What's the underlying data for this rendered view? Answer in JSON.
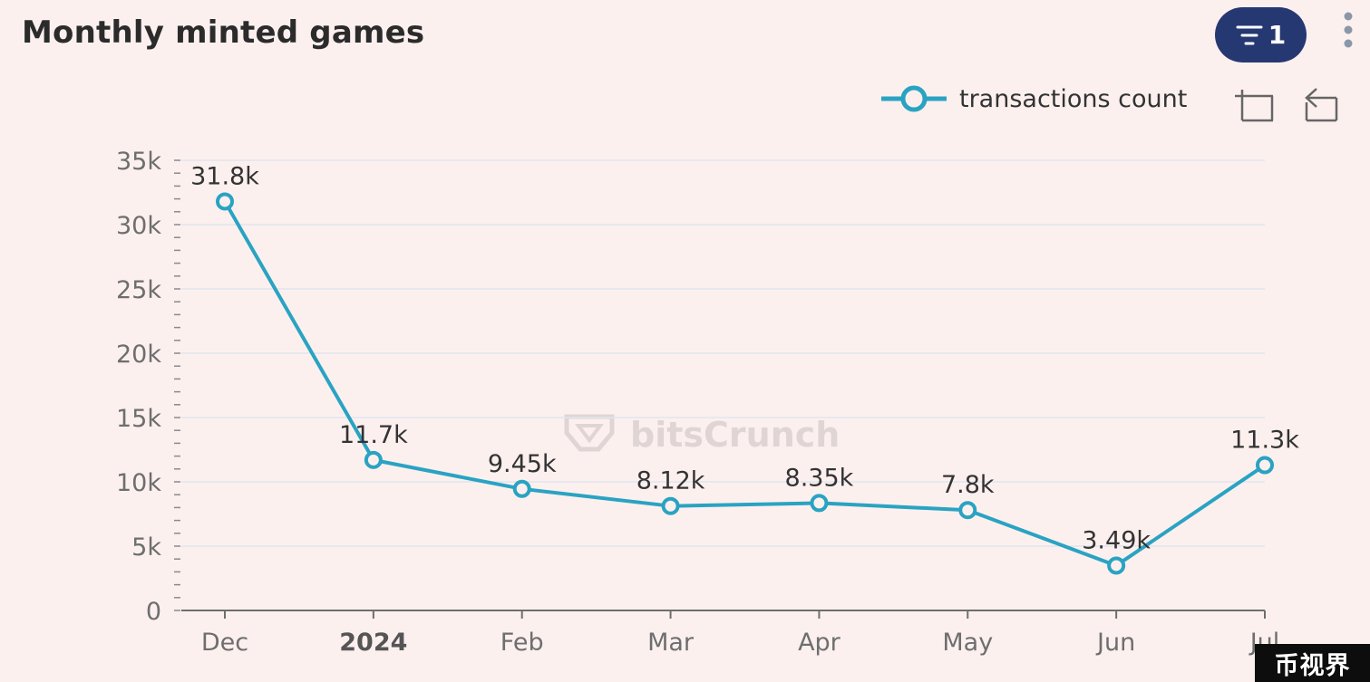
{
  "header": {
    "title": "Monthly minted games",
    "filter_count": "1"
  },
  "watermark": {
    "center_text": "bitsCrunch",
    "corner_text": "币视界"
  },
  "colors": {
    "series": "#2aa3c2",
    "filter_button": "#263872",
    "background": "#fcf0ef",
    "grid": "#dfe6ee"
  },
  "toolbar": {
    "icons": [
      "legend-marker-icon",
      "zoom-icon",
      "zoom-reset-icon"
    ]
  },
  "chart_data": {
    "type": "line",
    "categories": [
      "Dec",
      "2024",
      "Feb",
      "Mar",
      "Apr",
      "May",
      "Jun",
      "Jul"
    ],
    "bold_categories": [
      "2024"
    ],
    "series": [
      {
        "name": "transactions count",
        "values": [
          31800,
          11700,
          9450,
          8120,
          8350,
          7800,
          3490,
          11300
        ],
        "labels": [
          "31.8k",
          "11.7k",
          "9.45k",
          "8.12k",
          "8.35k",
          "7.8k",
          "3.49k",
          "11.3k"
        ]
      }
    ],
    "y_ticks": [
      {
        "value": 0,
        "label": "0"
      },
      {
        "value": 5000,
        "label": "5k"
      },
      {
        "value": 10000,
        "label": "10k"
      },
      {
        "value": 15000,
        "label": "15k"
      },
      {
        "value": 20000,
        "label": "20k"
      },
      {
        "value": 25000,
        "label": "25k"
      },
      {
        "value": 30000,
        "label": "30k"
      },
      {
        "value": 35000,
        "label": "35k"
      }
    ],
    "ylim": [
      0,
      35000
    ],
    "grid": true,
    "legend_position": "top-right"
  }
}
